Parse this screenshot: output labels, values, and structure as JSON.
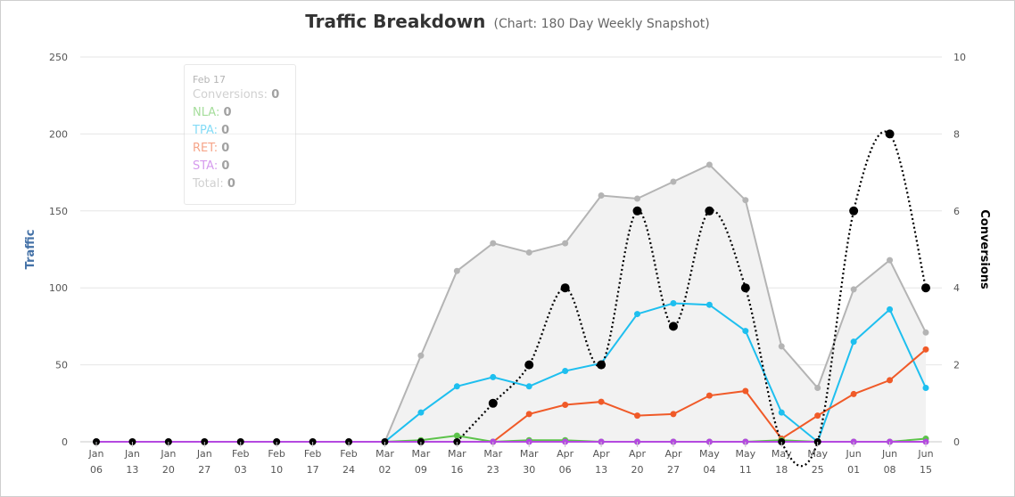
{
  "chart_data": {
    "type": "line",
    "title": "Traffic Breakdown",
    "subtitle": "(Chart: 180 Day Weekly Snapshot)",
    "ylabel_left": "Traffic",
    "ylabel_right": "Conversions",
    "ylim_left": [
      0,
      250
    ],
    "ylim_right": [
      0,
      10
    ],
    "yticks_left": [
      0,
      50,
      100,
      150,
      200,
      250
    ],
    "yticks_right": [
      0,
      2,
      4,
      6,
      8,
      10
    ],
    "grid": true,
    "categories": [
      [
        "Jan",
        "06"
      ],
      [
        "Jan",
        "13"
      ],
      [
        "Jan",
        "20"
      ],
      [
        "Jan",
        "27"
      ],
      [
        "Feb",
        "03"
      ],
      [
        "Feb",
        "10"
      ],
      [
        "Feb",
        "17"
      ],
      [
        "Feb",
        "24"
      ],
      [
        "Mar",
        "02"
      ],
      [
        "Mar",
        "09"
      ],
      [
        "Mar",
        "16"
      ],
      [
        "Mar",
        "23"
      ],
      [
        "Mar",
        "30"
      ],
      [
        "Apr",
        "06"
      ],
      [
        "Apr",
        "13"
      ],
      [
        "Apr",
        "20"
      ],
      [
        "Apr",
        "27"
      ],
      [
        "May",
        "04"
      ],
      [
        "May",
        "11"
      ],
      [
        "May",
        "18"
      ],
      [
        "May",
        "25"
      ],
      [
        "Jun",
        "01"
      ],
      [
        "Jun",
        "08"
      ],
      [
        "Jun",
        "15"
      ]
    ],
    "series": [
      {
        "name": "Total",
        "axis": "left",
        "style": "area",
        "color": "#b4b4b4",
        "fill": "#f2f2f2",
        "values": [
          0,
          0,
          0,
          0,
          0,
          0,
          0,
          0,
          0,
          56,
          111,
          129,
          123,
          129,
          160,
          158,
          169,
          180,
          157,
          62,
          35,
          99,
          118,
          71
        ]
      },
      {
        "name": "TPA",
        "axis": "left",
        "style": "line",
        "color": "#1ebfef",
        "values": [
          0,
          0,
          0,
          0,
          0,
          0,
          0,
          0,
          0,
          19,
          36,
          42,
          36,
          46,
          51,
          83,
          90,
          89,
          72,
          19,
          0,
          65,
          86,
          35
        ]
      },
      {
        "name": "RET",
        "axis": "left",
        "style": "line",
        "color": "#f05a28",
        "values": [
          0,
          0,
          0,
          0,
          0,
          0,
          0,
          0,
          0,
          0,
          0,
          0,
          18,
          24,
          26,
          17,
          18,
          30,
          33,
          2,
          17,
          31,
          40,
          60
        ]
      },
      {
        "name": "NLA",
        "axis": "left",
        "style": "line",
        "color": "#5cc34a",
        "values": [
          0,
          0,
          0,
          0,
          0,
          0,
          0,
          0,
          0,
          1,
          4,
          0,
          1,
          1,
          0,
          0,
          0,
          0,
          0,
          1,
          0,
          0,
          0,
          2
        ]
      },
      {
        "name": "STA",
        "axis": "left",
        "style": "line",
        "color": "#b449e0",
        "values": [
          0,
          0,
          0,
          0,
          0,
          0,
          0,
          0,
          0,
          0,
          0,
          0,
          0,
          0,
          0,
          0,
          0,
          0,
          0,
          0,
          0,
          0,
          0,
          0
        ]
      },
      {
        "name": "Conversions",
        "axis": "right",
        "style": "dotted-spline",
        "color": "#000000",
        "values": [
          0,
          0,
          0,
          0,
          0,
          0,
          0,
          0,
          0,
          0,
          0,
          1,
          2,
          4,
          2,
          6,
          3,
          6,
          4,
          0,
          0,
          6,
          8,
          4
        ]
      }
    ],
    "tooltip": {
      "date": "Feb 17",
      "rows": [
        {
          "label": "Conversions",
          "value": "0",
          "color": "#aaaaaa"
        },
        {
          "label": "NLA",
          "value": "0",
          "color": "#5cc34a"
        },
        {
          "label": "TPA",
          "value": "0",
          "color": "#1ebfef"
        },
        {
          "label": "RET",
          "value": "0",
          "color": "#f05a28"
        },
        {
          "label": "STA",
          "value": "0",
          "color": "#b449e0"
        },
        {
          "label": "Total",
          "value": "0",
          "color": "#aaaaaa"
        }
      ]
    }
  }
}
